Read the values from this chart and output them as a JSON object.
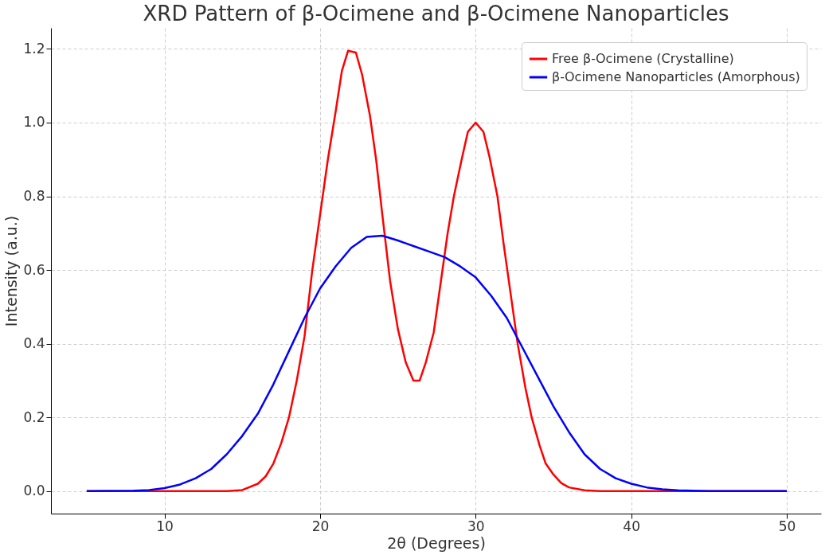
{
  "chart_data": {
    "type": "line",
    "title": "XRD Pattern of β-Ocimene and β-Ocimene Nanoparticles",
    "xlabel": "2θ (Degrees)",
    "ylabel": "Intensity (a.u.)",
    "xlim": [
      2.7,
      52.2
    ],
    "ylim": [
      -0.061,
      1.257
    ],
    "xticks": [
      10,
      20,
      30,
      40,
      50
    ],
    "yticks": [
      {
        "value": 0,
        "label": "0.0"
      },
      {
        "value": 0.2,
        "label": "0.2"
      },
      {
        "value": 0.4,
        "label": "0.4"
      },
      {
        "value": 0.6,
        "label": "0.6"
      },
      {
        "value": 0.8,
        "label": "0.8"
      },
      {
        "value": 1.0,
        "label": "1.0"
      },
      {
        "value": 1.2,
        "label": "1.2"
      }
    ],
    "grid": true,
    "legend": "top right",
    "line_style": "solid",
    "marker": "none",
    "series": [
      {
        "name": "Free β-Ocimene (Crystalline)",
        "color": "#ff0000",
        "x": [
          5,
          14,
          15,
          16,
          16.5,
          17,
          17.5,
          18,
          18.5,
          19,
          19.5,
          20,
          20.5,
          21,
          21.4,
          21.8,
          22.3,
          22.7,
          23.2,
          23.6,
          24,
          24.5,
          25,
          25.5,
          26,
          26.4,
          26.8,
          27.3,
          27.7,
          28.2,
          28.6,
          29.1,
          29.5,
          30,
          30.5,
          30.9,
          31.4,
          31.8,
          32.3,
          32.7,
          33.2,
          33.6,
          34.1,
          34.5,
          35,
          35.5,
          36,
          37,
          38,
          50
        ],
        "values": [
          0,
          0,
          0.003,
          0.02,
          0.04,
          0.075,
          0.13,
          0.2,
          0.3,
          0.42,
          0.6,
          0.75,
          0.9,
          1.03,
          1.14,
          1.195,
          1.19,
          1.13,
          1.02,
          0.9,
          0.75,
          0.57,
          0.44,
          0.35,
          0.3,
          0.3,
          0.35,
          0.43,
          0.55,
          0.7,
          0.8,
          0.9,
          0.975,
          1.0,
          0.975,
          0.905,
          0.8,
          0.67,
          0.52,
          0.4,
          0.28,
          0.2,
          0.125,
          0.075,
          0.045,
          0.022,
          0.01,
          0.002,
          0,
          0
        ]
      },
      {
        "name": "β-Ocimene Nanoparticles (Amorphous)",
        "color": "#0000ff",
        "x": [
          5,
          8,
          9,
          10,
          11,
          12,
          13,
          14,
          15,
          16,
          17,
          18,
          19,
          20,
          21,
          22,
          23,
          24,
          25,
          26,
          27,
          28,
          29,
          30,
          31,
          32,
          33,
          34,
          35,
          36,
          37,
          38,
          39,
          40,
          41,
          42,
          43,
          45,
          50
        ],
        "values": [
          0,
          0.001,
          0.003,
          0.008,
          0.018,
          0.035,
          0.06,
          0.1,
          0.15,
          0.21,
          0.29,
          0.38,
          0.47,
          0.55,
          0.61,
          0.66,
          0.69,
          0.693,
          0.68,
          0.665,
          0.65,
          0.635,
          0.61,
          0.58,
          0.53,
          0.47,
          0.39,
          0.31,
          0.23,
          0.16,
          0.1,
          0.06,
          0.035,
          0.02,
          0.01,
          0.005,
          0.002,
          0,
          0
        ]
      }
    ]
  }
}
